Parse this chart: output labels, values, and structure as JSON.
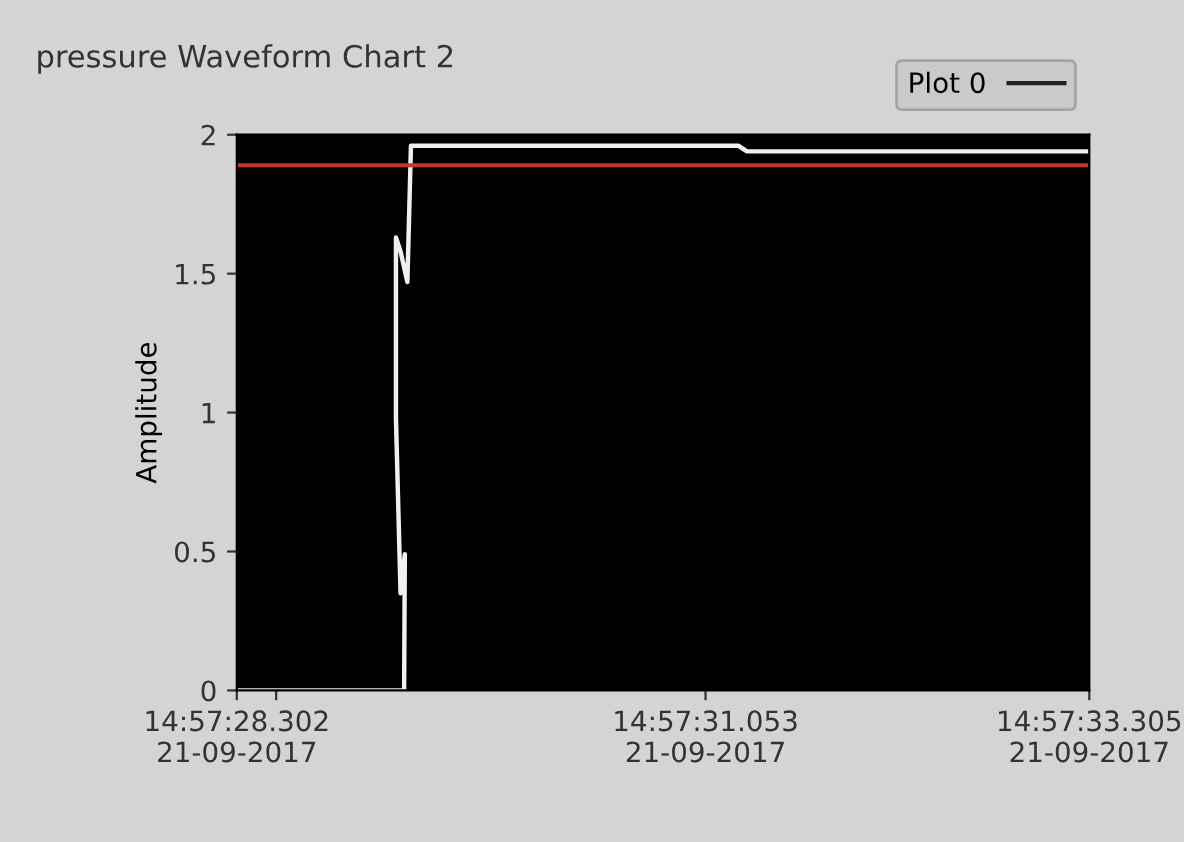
{
  "chart_data": {
    "type": "line",
    "title": "pressure Waveform Chart 2",
    "ylabel": "Amplitude",
    "series": [
      {
        "name": "Plot 0",
        "color": "#f0f0f0",
        "x": [
          "2017-09-21T14:57:28.302",
          "2017-09-21T14:57:29.284",
          "2017-09-21T14:57:29.288",
          "2017-09-21T14:57:29.263",
          "2017-09-21T14:57:29.236",
          "2017-09-21T14:57:29.236",
          "2017-09-21T14:57:29.263",
          "2017-09-21T14:57:29.303",
          "2017-09-21T14:57:29.324",
          "2017-09-21T14:57:31.247",
          "2017-09-21T14:57:31.296",
          "2017-09-21T14:57:33.305"
        ],
        "values": [
          0,
          0,
          0.49,
          0.35,
          0.98,
          1.63,
          1.58,
          1.47,
          1.96,
          1.96,
          1.94,
          1.94
        ]
      }
    ],
    "ref_lines": [
      {
        "axis": "y",
        "value": 1.89,
        "color": "#c0392b"
      }
    ],
    "xlim": [
      "2017-09-21T14:57:28.302",
      "2017-09-21T14:57:33.305"
    ],
    "xticks": [
      {
        "value": "2017-09-21T14:57:28.302",
        "label": "14:57:28.302\n21-09-2017"
      },
      {
        "value": "2017-09-21T14:57:28.533",
        "label": null
      },
      {
        "value": "2017-09-21T14:57:31.053",
        "label": "14:57:31.053\n21-09-2017"
      },
      {
        "value": "2017-09-21T14:57:33.305",
        "label": "14:57:33.305\n21-09-2017"
      }
    ],
    "ylim": [
      0,
      2
    ],
    "yticks": [
      0,
      0.5,
      1,
      1.5,
      2
    ],
    "grid": false,
    "legend": "top right",
    "marker": "none",
    "line_style": "solid"
  }
}
